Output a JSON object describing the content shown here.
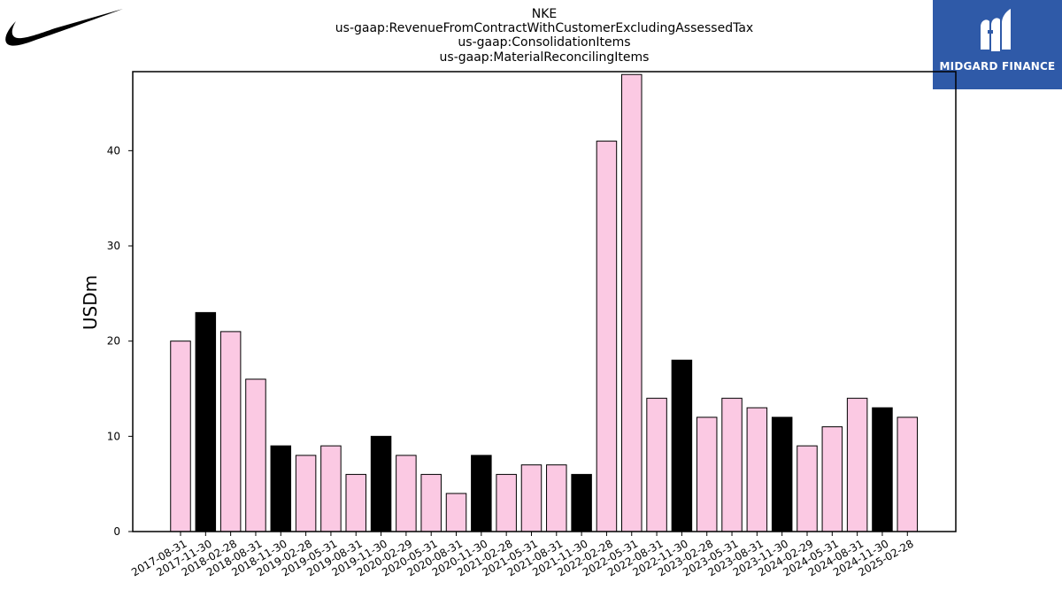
{
  "logo": {
    "left_icon": "nike-swoosh-logo",
    "right_icon": "midgard-finance-logo",
    "right_text": "MIDGARD FINANCE",
    "right_bg": "#2f5aa8"
  },
  "chart_data": {
    "type": "bar",
    "title_lines": [
      "NKE",
      "us-gaap:RevenueFromContractWithCustomerExcludingAssessedTax",
      "us-gaap:ConsolidationItems",
      "us-gaap:MaterialReconcilingItems"
    ],
    "xlabel": "",
    "ylabel": "USDm",
    "ylim": [
      0,
      48.3
    ],
    "yticks": [
      0,
      10,
      20,
      30,
      40
    ],
    "grid": false,
    "colors": {
      "normal": "#fbc9e3",
      "highlight": "#000000",
      "edge": "#000000"
    },
    "categories": [
      "2017-08-31",
      "2017-11-30",
      "2018-02-28",
      "2018-08-31",
      "2018-11-30",
      "2019-02-28",
      "2019-05-31",
      "2019-08-31",
      "2019-11-30",
      "2020-02-29",
      "2020-05-31",
      "2020-08-31",
      "2020-11-30",
      "2021-02-28",
      "2021-05-31",
      "2021-08-31",
      "2021-11-30",
      "2022-02-28",
      "2022-05-31",
      "2022-08-31",
      "2022-11-30",
      "2023-02-28",
      "2023-05-31",
      "2023-08-31",
      "2023-11-30",
      "2024-02-29",
      "2024-05-31",
      "2024-08-31",
      "2024-11-30",
      "2025-02-28"
    ],
    "values": [
      20,
      23,
      21,
      16,
      9,
      8,
      9,
      6,
      10,
      8,
      6,
      4,
      8,
      6,
      7,
      7,
      6,
      41,
      48,
      14,
      18,
      12,
      14,
      13,
      12,
      9,
      11,
      14,
      13,
      12
    ],
    "highlighted": [
      false,
      true,
      false,
      false,
      true,
      false,
      false,
      false,
      true,
      false,
      false,
      false,
      true,
      false,
      false,
      false,
      true,
      false,
      false,
      false,
      true,
      false,
      false,
      false,
      true,
      false,
      false,
      false,
      true,
      false
    ]
  }
}
